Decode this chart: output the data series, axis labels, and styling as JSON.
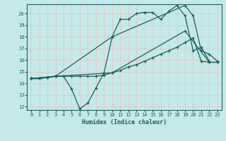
{
  "xlabel": "Humidex (Indice chaleur)",
  "bg_color": "#c5e8e8",
  "grid_color": "#e8c8c8",
  "line_color": "#1a6060",
  "xlim": [
    -0.5,
    23.5
  ],
  "ylim": [
    11.7,
    20.8
  ],
  "yticks": [
    12,
    13,
    14,
    15,
    16,
    17,
    18,
    19,
    20
  ],
  "xticks": [
    0,
    1,
    2,
    3,
    4,
    5,
    6,
    7,
    8,
    9,
    10,
    11,
    12,
    13,
    14,
    15,
    16,
    17,
    18,
    19,
    20,
    21,
    22,
    23
  ],
  "lines": [
    {
      "x": [
        0,
        1,
        2,
        3,
        4,
        5,
        6,
        7,
        8,
        9,
        10,
        11,
        12,
        13,
        14,
        15,
        16,
        17,
        18,
        19,
        20,
        21,
        22
      ],
      "y": [
        14.4,
        14.4,
        14.5,
        14.6,
        14.6,
        13.5,
        11.8,
        12.3,
        13.6,
        14.9,
        18.0,
        19.5,
        19.5,
        20.0,
        20.1,
        20.1,
        19.5,
        20.2,
        20.7,
        19.8,
        16.8,
        17.1,
        15.9
      ]
    },
    {
      "x": [
        0,
        1,
        2,
        3,
        4,
        5,
        6,
        7,
        8,
        9,
        10,
        11,
        12,
        13,
        14,
        15,
        16,
        17,
        18,
        19,
        20,
        21,
        22,
        23
      ],
      "y": [
        14.4,
        14.4,
        14.5,
        14.6,
        14.6,
        14.6,
        14.6,
        14.6,
        14.6,
        14.7,
        14.9,
        15.1,
        15.4,
        15.6,
        15.9,
        16.2,
        16.5,
        16.8,
        17.1,
        17.5,
        17.9,
        15.9,
        15.8,
        15.8
      ]
    },
    {
      "x": [
        0,
        3,
        10,
        19,
        20,
        21,
        22,
        23
      ],
      "y": [
        14.4,
        14.6,
        18.0,
        20.7,
        19.8,
        16.8,
        16.5,
        15.9
      ]
    },
    {
      "x": [
        0,
        3,
        10,
        19,
        22,
        23
      ],
      "y": [
        14.4,
        14.6,
        14.9,
        18.5,
        15.8,
        15.8
      ]
    }
  ]
}
